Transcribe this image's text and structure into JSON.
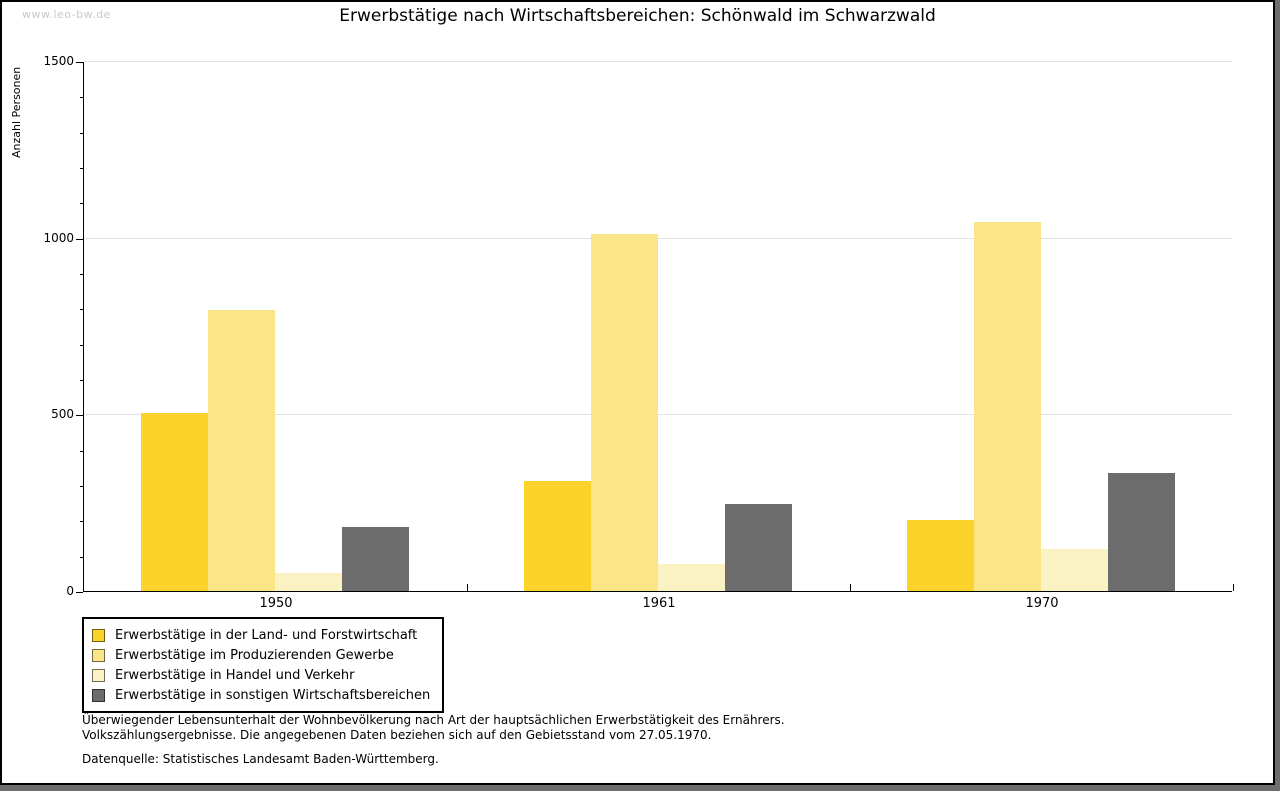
{
  "watermark": "www.leo-bw.de",
  "title": "Erwerbstätige nach Wirtschaftsbereichen: Schönwald im Schwarzwald",
  "chart_data": {
    "type": "bar",
    "title": "Erwerbstätige nach Wirtschaftsbereichen: Schönwald im Schwarzwald",
    "xlabel": "",
    "ylabel": "Anzahl Personen",
    "ylim": [
      0,
      1500
    ],
    "yticks": [
      0,
      500,
      1000,
      1500
    ],
    "minor_tick_step": 100,
    "grid": "horizontal-major",
    "legend_position": "bottom-left",
    "categories": [
      "1950",
      "1961",
      "1970"
    ],
    "series": [
      {
        "name": "Erwerbstätige in der Land- und Forstwirtschaft",
        "color": "#FCD32B",
        "values": [
          505,
          310,
          200
        ]
      },
      {
        "name": "Erwerbstätige im Produzierenden Gewerbe",
        "color": "#FAE687",
        "values": [
          795,
          1010,
          1045
        ]
      },
      {
        "name": "Erwerbstätige in Handel und Verkehr",
        "color": "#FBF2C4",
        "values": [
          50,
          75,
          120
        ]
      },
      {
        "name": "Erwerbstätige in sonstigen Wirtschaftsbereichen",
        "color": "#6C6C6C",
        "values": [
          180,
          245,
          335
        ]
      }
    ]
  },
  "footnotes": {
    "line1": "Überwiegender Lebensunterhalt der Wohnbevölkerung nach Art der hauptsächlichen Erwerbstätigkeit des Ernährers.",
    "line2": "Volkszählungsergebnisse. Die angegebenen Daten beziehen sich auf den Gebietsstand vom 27.05.1970.",
    "source": "Datenquelle: Statistisches Landesamt Baden-Württemberg."
  },
  "colors": {
    "page_background": "#FFFFFF",
    "page_border": "#000000",
    "shadow": "#6E6E6E",
    "gridline": "#E2E2E2",
    "watermark": "#C9C9C9"
  }
}
